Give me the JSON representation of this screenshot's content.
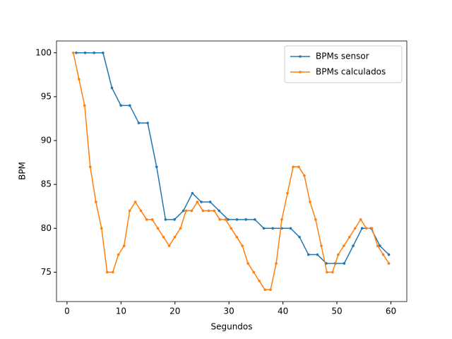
{
  "chart_data": {
    "type": "line",
    "xlabel": "Segundos",
    "ylabel": "BPM",
    "xlim": [
      -1.95,
      62.95
    ],
    "ylim": [
      71.65,
      101.35
    ],
    "xticks": [
      0,
      10,
      20,
      30,
      40,
      50,
      60
    ],
    "yticks": [
      75,
      80,
      85,
      90,
      95,
      100
    ],
    "legend": "upper right",
    "series": [
      {
        "name": "BPMs sensor",
        "color": "#1f77b4",
        "x": [
          1.7,
          3.36,
          5.01,
          6.67,
          8.32,
          9.98,
          11.63,
          13.29,
          14.94,
          16.6,
          18.25,
          19.91,
          21.56,
          23.22,
          24.87,
          26.53,
          28.18,
          29.84,
          31.49,
          33.15,
          34.8,
          36.46,
          38.11,
          39.77,
          41.42,
          43.08,
          44.73,
          46.39,
          48.04,
          49.7,
          51.35,
          53.01,
          54.66,
          56.32,
          57.97,
          59.63
        ],
        "values": [
          100,
          100,
          100,
          100,
          96,
          94,
          94,
          92,
          92,
          87,
          81,
          81,
          82,
          84,
          83,
          83,
          82,
          81,
          81,
          81,
          81,
          80,
          80,
          80,
          80,
          79,
          77,
          77,
          76,
          76,
          76,
          78,
          80,
          80,
          78,
          77
        ]
      },
      {
        "name": "BPMs calculados",
        "color": "#ff7f0e",
        "x": [
          1.17,
          2.21,
          3.26,
          4.3,
          5.35,
          6.39,
          7.43,
          8.48,
          9.52,
          10.57,
          11.61,
          12.65,
          13.7,
          14.74,
          15.79,
          16.83,
          17.87,
          18.92,
          19.96,
          21.01,
          22.05,
          23.09,
          24.14,
          25.18,
          26.23,
          27.27,
          28.31,
          29.36,
          30.4,
          31.45,
          32.49,
          33.53,
          34.58,
          35.62,
          36.67,
          37.71,
          38.75,
          39.8,
          40.84,
          41.89,
          42.93,
          43.97,
          45.02,
          46.06,
          47.11,
          48.15,
          49.19,
          50.24,
          51.28,
          52.33,
          53.37,
          54.41,
          55.46,
          56.5,
          57.55,
          58.59,
          59.63
        ],
        "values": [
          100,
          97,
          94,
          87,
          83,
          80,
          75,
          75,
          77,
          78,
          82,
          83,
          82,
          81,
          81,
          80,
          79,
          78,
          79,
          80,
          82,
          82,
          83,
          82,
          82,
          82,
          81,
          81,
          80,
          79,
          78,
          76,
          75,
          74,
          73,
          73,
          76,
          81,
          84,
          87,
          87,
          86,
          83,
          81,
          78,
          75,
          75,
          77,
          78,
          79,
          80,
          81,
          80,
          80,
          78,
          77,
          76
        ]
      }
    ]
  }
}
